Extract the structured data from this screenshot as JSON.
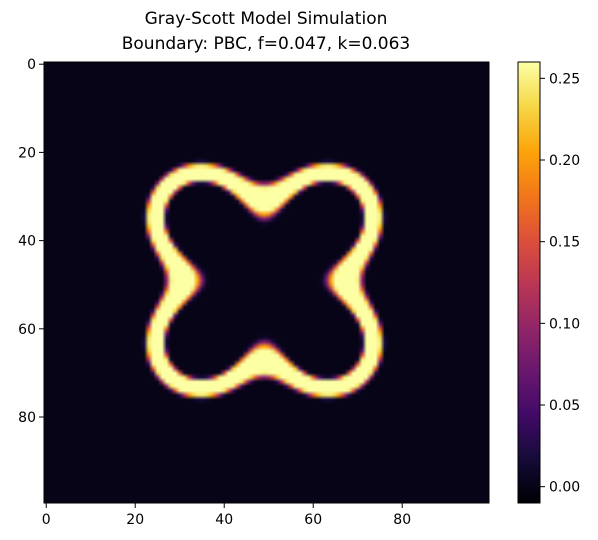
{
  "chart_data": {
    "type": "heatmap",
    "title": "Gray-Scott Model Simulation",
    "subtitle": "Boundary: PBC, f=0.047, k=0.063",
    "xlabel": "",
    "ylabel": "",
    "grid_size": [
      100,
      100
    ],
    "xlim": [
      0,
      99
    ],
    "ylim": [
      99,
      0
    ],
    "x_ticks": [
      0,
      20,
      40,
      60,
      80
    ],
    "y_ticks": [
      0,
      20,
      40,
      60,
      80
    ],
    "colormap": "inferno",
    "colorbar": {
      "range": [
        -0.01,
        0.26
      ],
      "ticks": [
        "0.00",
        "0.05",
        "0.10",
        "0.15",
        "0.20",
        "0.25"
      ],
      "tick_values": [
        0.0,
        0.05,
        0.1,
        0.15,
        0.2,
        0.25
      ],
      "placement": "right"
    },
    "pattern": {
      "shape": "four-lobed X-shaped ring",
      "center": [
        49.5,
        49.5
      ],
      "lobe_centers": [
        [
          35,
          35
        ],
        [
          64,
          35
        ],
        [
          35,
          64
        ],
        [
          64,
          64
        ]
      ],
      "peak_value": 0.26,
      "background_value": 0.0
    }
  }
}
